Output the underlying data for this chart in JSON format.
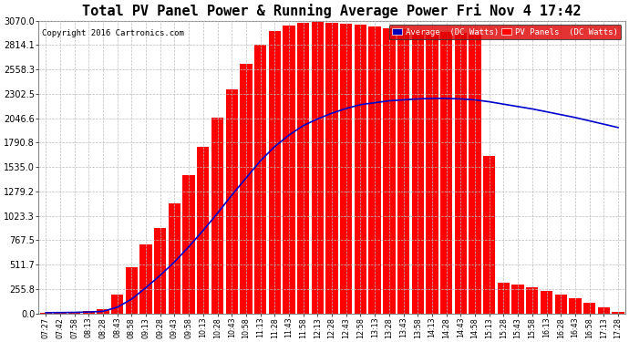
{
  "title": "Total PV Panel Power & Running Average Power Fri Nov 4 17:42",
  "copyright": "Copyright 2016 Cartronics.com",
  "legend_avg": "Average  (DC Watts)",
  "legend_pv": "PV Panels  (DC Watts)",
  "ylabel_values": [
    0.0,
    255.8,
    511.7,
    767.5,
    1023.3,
    1279.2,
    1535.0,
    1790.8,
    2046.6,
    2302.5,
    2558.3,
    2814.1,
    3070.0
  ],
  "x_labels": [
    "07:27",
    "07:42",
    "07:58",
    "08:13",
    "08:28",
    "08:43",
    "08:58",
    "09:13",
    "09:28",
    "09:43",
    "09:58",
    "10:13",
    "10:28",
    "10:43",
    "10:58",
    "11:13",
    "11:28",
    "11:43",
    "11:58",
    "12:13",
    "12:28",
    "12:43",
    "12:58",
    "13:13",
    "13:28",
    "13:43",
    "13:58",
    "14:13",
    "14:28",
    "14:43",
    "14:58",
    "15:13",
    "15:28",
    "15:43",
    "15:58",
    "16:13",
    "16:28",
    "16:43",
    "16:58",
    "17:13",
    "17:28"
  ],
  "pv_power": [
    8,
    10,
    15,
    25,
    45,
    200,
    480,
    720,
    900,
    1150,
    1450,
    1750,
    2050,
    2350,
    2620,
    2820,
    2960,
    3020,
    3050,
    3060,
    3050,
    3040,
    3030,
    3010,
    2990,
    2980,
    2970,
    2960,
    2950,
    2940,
    2920,
    1650,
    320,
    300,
    270,
    240,
    200,
    160,
    110,
    60,
    15
  ],
  "avg_power": [
    8,
    9,
    11,
    15,
    22,
    65,
    150,
    270,
    400,
    540,
    700,
    870,
    1050,
    1240,
    1420,
    1600,
    1750,
    1870,
    1970,
    2040,
    2100,
    2150,
    2190,
    2210,
    2230,
    2240,
    2250,
    2255,
    2255,
    2250,
    2240,
    2220,
    2195,
    2170,
    2145,
    2115,
    2085,
    2055,
    2020,
    1985,
    1950
  ],
  "bg_color": "#ffffff",
  "grid_color": "#bbbbbb",
  "pv_color": "#ff0000",
  "avg_color": "#0000cc",
  "fill_alpha": 1.0,
  "title_fontsize": 11,
  "ymax": 3070.0,
  "fig_width": 6.9,
  "fig_height": 3.75,
  "dpi": 100
}
